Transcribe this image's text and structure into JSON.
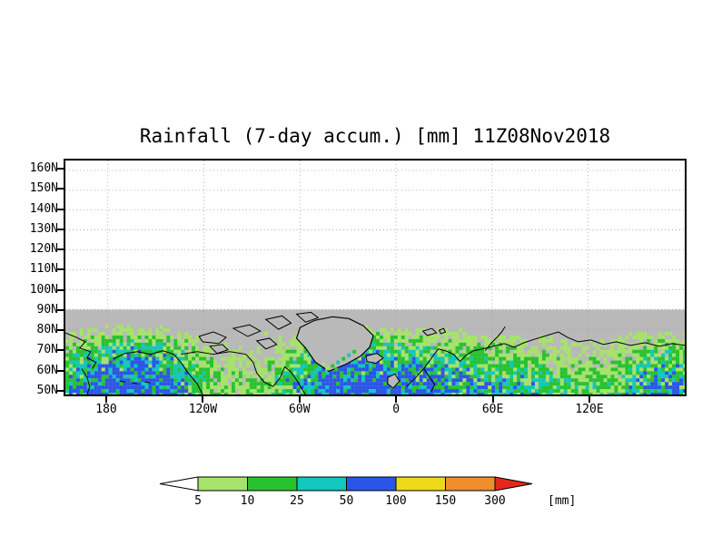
{
  "title": "Rainfall (7-day accum.) [mm] 11Z08Nov2018",
  "axes": {
    "y_ticks": [
      "160N",
      "150N",
      "140N",
      "130N",
      "120N",
      "110N",
      "100N",
      "90N",
      "80N",
      "70N",
      "60N",
      "50N"
    ],
    "x_ticks": [
      "180",
      "120W",
      "60W",
      "0",
      "60E",
      "120E"
    ]
  },
  "colorbar": {
    "labels": [
      "5",
      "10",
      "25",
      "50",
      "100",
      "150",
      "300"
    ],
    "units_label": "[mm]",
    "segment_colors": [
      "#ffffff",
      "#a6e36b",
      "#27c32f",
      "#12c7bd",
      "#2b55e8",
      "#eed919",
      "#ee8f2b",
      "#e5271d"
    ],
    "low_arrow_color": "#ffffff",
    "high_arrow_color": "#e5271d"
  },
  "map": {
    "polar_mask_color": "#ffffff",
    "land_ocean_mask_color": "#b9b9b9",
    "coastline_color": "#000000",
    "gridline_color": "#999999"
  },
  "chart_data": {
    "type": "heatmap",
    "title": "Rainfall (7-day accum.) [mm] 11Z08Nov2018",
    "variable": "Rainfall, 7-day accumulation",
    "units": "mm",
    "valid_time": "11Z08Nov2018",
    "x_tick_labels": [
      "180",
      "120W",
      "60W",
      "0",
      "60E",
      "120E"
    ],
    "y_tick_labels": [
      "160N",
      "150N",
      "140N",
      "130N",
      "120N",
      "110N",
      "100N",
      "90N",
      "80N",
      "70N",
      "60N",
      "50N"
    ],
    "contour_levels_mm": [
      5,
      10,
      25,
      50,
      100,
      150,
      300
    ],
    "level_colors": [
      "#ffffff",
      "#a6e36b",
      "#27c32f",
      "#12c7bd",
      "#2b55e8",
      "#eed919",
      "#ee8f2b",
      "#e5271d"
    ],
    "legend_position": "bottom",
    "grid": "dotted",
    "field_description": "7-day accumulated rainfall shaded in green/cyan/blue bands over a gray high-latitude map with black coastlines (Greenland, northern Canada, Alaska, Iceland, Scandinavia, Siberia); area poleward of 90N is blank white"
  }
}
